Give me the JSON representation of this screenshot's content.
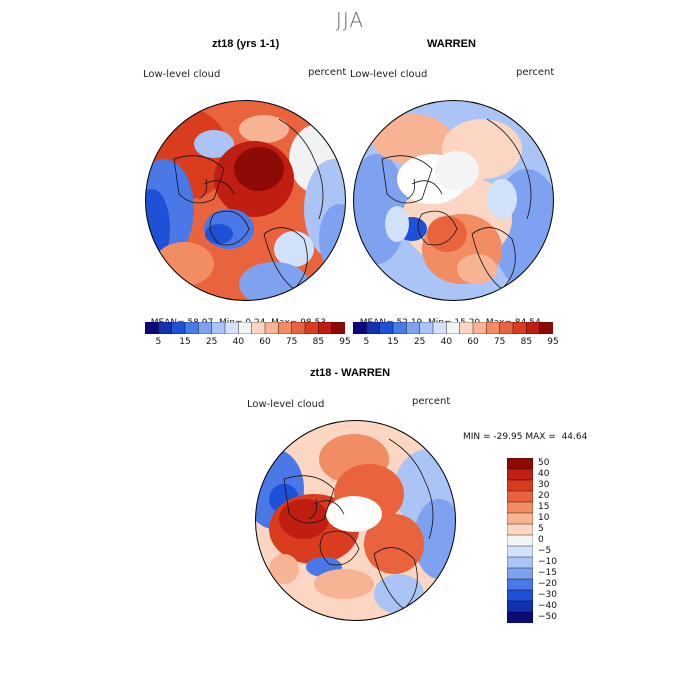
{
  "season_title": "JJA",
  "panels": [
    {
      "title": "zt18 (yrs 1-1)",
      "variable": "Low-level cloud",
      "units": "percent",
      "stats": {
        "mean": "58.97",
        "min": "0.24",
        "max": "98.53"
      }
    },
    {
      "title": "WARREN",
      "variable": "Low-level cloud",
      "units": "percent",
      "stats": {
        "mean": "52.19",
        "min": "15.20",
        "max": "84.54"
      }
    }
  ],
  "stat_labels": {
    "mean": "MEAN=",
    "min": "Min=",
    "max": "Max="
  },
  "abs_colorbar": {
    "ticks": [
      "5",
      "15",
      "25",
      "40",
      "60",
      "75",
      "85",
      "95"
    ],
    "colors": [
      "#0a0a7a",
      "#1230b0",
      "#1f50d8",
      "#4a78e6",
      "#7ea2ef",
      "#a9c4f5",
      "#d2e2fa",
      "#f4f4f4",
      "#fbd6c2",
      "#f7b394",
      "#f28c63",
      "#e9633c",
      "#da3d1e",
      "#c01e10",
      "#8e0a06"
    ]
  },
  "diff_panel": {
    "title": "zt18 - WARREN",
    "variable": "Low-level cloud",
    "units": "percent",
    "min_label": "MIN =",
    "min": "-29.95",
    "max_label": "MAX =",
    "max": "44.64",
    "colorbar_ticks": [
      "50",
      "40",
      "30",
      "20",
      "15",
      "10",
      "5",
      "0",
      "−5",
      "−10",
      "−15",
      "−20",
      "−30",
      "−40",
      "−50"
    ],
    "colorbar_colors": [
      "#8e0a06",
      "#c01e10",
      "#da3d1e",
      "#e9633c",
      "#f28c63",
      "#f7b394",
      "#fbd6c2",
      "#f4f4f4",
      "#d2e2fa",
      "#a9c4f5",
      "#7ea2ef",
      "#4a78e6",
      "#1f50d8",
      "#1230b0",
      "#0a0a7a"
    ]
  },
  "colors": {
    "outline": "#000000",
    "land_line": "#111111",
    "missing": "#ffffff"
  }
}
